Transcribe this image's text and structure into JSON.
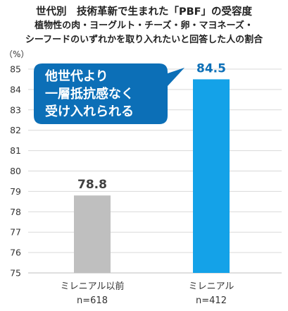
{
  "title": "世代別　技術革新で生まれた「PBF」の受容度",
  "subtitle_lines": [
    "植物性の肉・ヨーグルト・チーズ・卵・マヨネーズ・",
    "シーフードのいずれかを取り入れたいと回答した人の割合"
  ],
  "colors": {
    "bar_pre_millennial": "#bfbfbf",
    "bar_millennial": "#14a2e8",
    "callout_fill": "#0c6fb7",
    "callout_text": "#ffffff",
    "value_pre_millennial": "#404040",
    "value_millennial": "#0c6fb7",
    "grid": "#d9d9d9"
  },
  "callout": {
    "lines": [
      "他世代より",
      "一層抵抗感なく",
      "受け入れられる"
    ]
  },
  "chart_data": {
    "type": "bar",
    "title": "世代別　技術革新で生まれた「PBF」の受容度",
    "subtitle": "植物性の肉・ヨーグルト・チーズ・卵・マヨネーズ・シーフードのいずれかを取り入れたいと回答した人の割合",
    "ylabel": "（%）",
    "ylim": [
      75,
      85
    ],
    "yticks": [
      75,
      76,
      77,
      78,
      79,
      80,
      81,
      82,
      83,
      84,
      85
    ],
    "grid": true,
    "categories": [
      "ミレニアル以前",
      "ミレニアル"
    ],
    "category_sublabels": [
      "n=618",
      "n=412"
    ],
    "values": [
      78.8,
      84.5
    ],
    "data_labels": [
      "78.8",
      "84.5"
    ]
  }
}
